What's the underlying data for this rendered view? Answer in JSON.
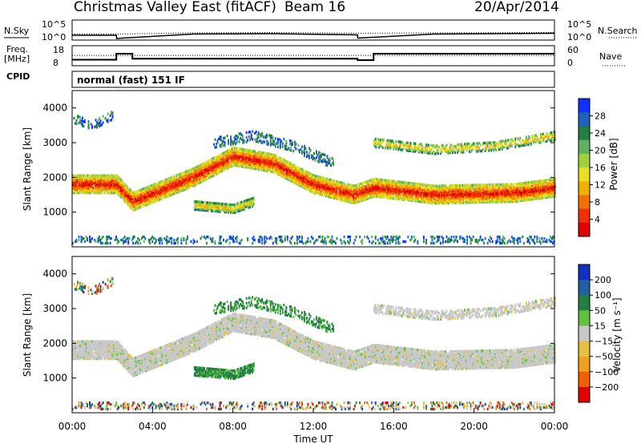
{
  "header": {
    "station": "Christmas Valley East (fitACF)",
    "beam": "Beam 16",
    "date": "20/Apr/2014",
    "cpid_label": "CPID",
    "cpid_value": "normal (fast) 151 IF"
  },
  "chart_data": [
    {
      "type": "line",
      "name": "noise-panel",
      "left_label": "N.Sky",
      "right_label": "N.Search",
      "left_ticks": [
        "10^5",
        "10^0"
      ],
      "right_ticks": [
        "10^5",
        "10^0"
      ],
      "x": [
        0,
        2.2,
        2.21,
        6,
        10,
        14.2,
        14.21,
        18,
        24
      ],
      "series": [
        {
          "name": "N.Sky",
          "values": [
            1.2,
            1.2,
            0.4,
            1.5,
            1.6,
            1.3,
            0.5,
            1.5,
            1.7
          ]
        },
        {
          "name": "N.Search",
          "values": [
            1.5,
            1.5,
            1.5,
            1.8,
            1.9,
            1.7,
            1.7,
            1.8,
            1.9
          ]
        }
      ]
    },
    {
      "type": "line",
      "name": "freq-nave-panel",
      "left_label": "Freq. [MHz]",
      "right_label": "Nave",
      "left_ticks": [
        "18",
        "8"
      ],
      "right_ticks": [
        "60",
        "0"
      ],
      "freq": {
        "x": [
          0,
          2.2,
          2.2,
          3.0,
          3.0,
          14.2,
          14.2,
          15.0,
          15.0,
          24
        ],
        "values": [
          11,
          11,
          14,
          14,
          11.5,
          11.5,
          10.8,
          10.8,
          14,
          14
        ]
      },
      "nave": {
        "x": [
          0,
          24
        ],
        "values": [
          31,
          31
        ]
      }
    },
    {
      "type": "heatmap",
      "name": "power-panel",
      "ylabel": "Slant Range [km]",
      "yticks": [
        1000,
        2000,
        3000,
        4000
      ],
      "ylim": [
        0,
        4500
      ],
      "xlim": [
        0,
        24
      ],
      "colorbar": {
        "label": "Power [dB]",
        "ticks": [
          "28",
          "24",
          "20",
          "16",
          "12",
          "8",
          "4"
        ],
        "colors": [
          "#1030ff",
          "#2060c0",
          "#208040",
          "#60b060",
          "#a0d040",
          "#e8e020",
          "#f0b000",
          "#f07000",
          "#f03000",
          "#e00000"
        ]
      }
    },
    {
      "type": "heatmap",
      "name": "velocity-panel",
      "ylabel": "Slant Range [km]",
      "yticks": [
        1000,
        2000,
        3000,
        4000
      ],
      "ylim": [
        0,
        4500
      ],
      "xlim": [
        0,
        24
      ],
      "xlabel": "Time UT",
      "xticks": [
        "00:00",
        "04:00",
        "08:00",
        "12:00",
        "16:00",
        "20:00",
        "00:00"
      ],
      "colorbar": {
        "label": "Velocity [m s⁻¹]",
        "ticks": [
          "200",
          "100",
          "50",
          "15",
          "−15",
          "−50",
          "−100",
          "−200"
        ],
        "colors": [
          "#1030c0",
          "#2060a0",
          "#208040",
          "#60c040",
          "#c8c8c8",
          "#e8c040",
          "#f0a020",
          "#f06000",
          "#e00000"
        ]
      }
    }
  ]
}
